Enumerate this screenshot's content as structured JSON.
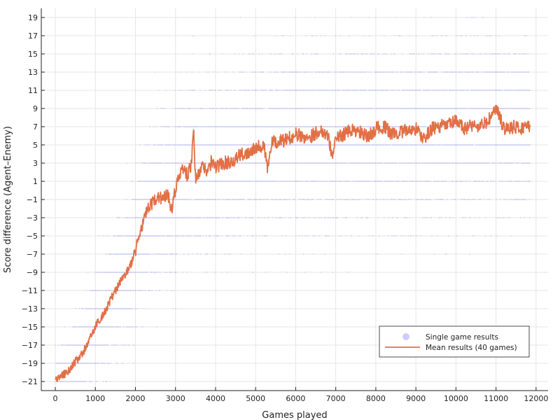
{
  "chart_data": {
    "type": "scatter",
    "title": "",
    "xlabel": "Games played",
    "ylabel": "Score difference (Agent–Enemy)",
    "xlim": [
      -350,
      12300
    ],
    "ylim": [
      -22,
      20
    ],
    "xticks": [
      0,
      1000,
      2000,
      3000,
      4000,
      5000,
      6000,
      7000,
      8000,
      9000,
      10000,
      11000,
      12000
    ],
    "yticks": [
      -21,
      -19,
      -17,
      -15,
      -13,
      -11,
      -9,
      -7,
      -5,
      -3,
      -1,
      1,
      3,
      5,
      7,
      9,
      11,
      13,
      15,
      17,
      19
    ],
    "grid": true,
    "legend_position": "bottom-right",
    "series": [
      {
        "name": "Single game results",
        "kind": "scatter",
        "color": "#0000ff",
        "opacity": 0.2,
        "n_points": 11850,
        "x_range": [
          0,
          11850
        ]
      },
      {
        "name": "Mean results (40 games)",
        "kind": "line",
        "color": "#e26f46",
        "x": [
          0,
          100,
          200,
          300,
          400,
          500,
          600,
          700,
          800,
          900,
          1000,
          1100,
          1200,
          1300,
          1400,
          1500,
          1600,
          1700,
          1800,
          1900,
          2000,
          2100,
          2200,
          2300,
          2400,
          2500,
          2600,
          2700,
          2800,
          2900,
          3000,
          3100,
          3200,
          3300,
          3400,
          3450,
          3500,
          3600,
          3700,
          3800,
          3900,
          4000,
          4200,
          4400,
          4600,
          4800,
          5000,
          5200,
          5300,
          5400,
          5600,
          5800,
          6000,
          6200,
          6400,
          6600,
          6800,
          6900,
          7000,
          7200,
          7400,
          7600,
          7800,
          8000,
          8200,
          8400,
          8600,
          8800,
          9000,
          9200,
          9400,
          9600,
          9800,
          10000,
          10200,
          10400,
          10600,
          10800,
          11000,
          11200,
          11400,
          11600,
          11850
        ],
        "y": [
          -20.8,
          -20.6,
          -20.2,
          -20.0,
          -19.4,
          -18.8,
          -18.4,
          -17.8,
          -16.8,
          -16.0,
          -15.0,
          -14.2,
          -13.6,
          -12.8,
          -11.8,
          -11.0,
          -10.2,
          -9.6,
          -8.8,
          -8.0,
          -6.6,
          -4.8,
          -3.4,
          -2.2,
          -1.6,
          -1.0,
          -0.6,
          -1.0,
          -0.2,
          -2.0,
          0.2,
          1.6,
          2.6,
          1.6,
          3.0,
          6.6,
          1.2,
          2.0,
          2.8,
          2.0,
          3.2,
          2.6,
          3.0,
          3.2,
          3.8,
          4.2,
          4.8,
          5.0,
          2.4,
          5.2,
          5.4,
          5.6,
          6.2,
          5.8,
          6.0,
          6.6,
          6.2,
          3.8,
          5.6,
          6.2,
          6.6,
          6.4,
          5.8,
          6.8,
          7.0,
          6.2,
          6.4,
          6.6,
          6.8,
          5.6,
          6.8,
          7.0,
          7.2,
          7.6,
          6.8,
          7.2,
          7.0,
          7.6,
          9.0,
          6.8,
          7.0,
          6.8,
          7.2
        ]
      }
    ]
  }
}
